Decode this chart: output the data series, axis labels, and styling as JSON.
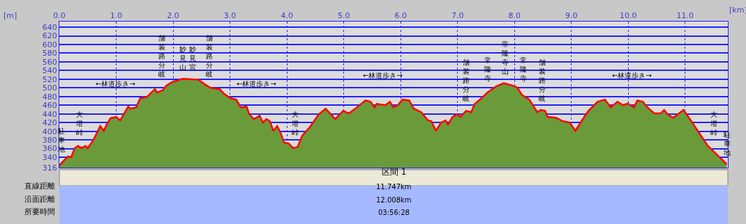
{
  "chart_data": {
    "type": "area",
    "xlabel": "[km]",
    "ylabel": "[m]",
    "x": [
      0,
      0.15,
      0.21,
      0.27,
      0.33,
      0.39,
      0.46,
      0.5,
      0.6,
      0.72,
      0.78,
      0.84,
      0.9,
      1.0,
      1.07,
      1.21,
      1.25,
      1.35,
      1.42,
      1.54,
      1.68,
      1.72,
      1.82,
      1.88,
      1.98,
      2.17,
      2.44,
      2.56,
      2.66,
      2.82,
      2.89,
      3.01,
      3.11,
      3.19,
      3.29,
      3.34,
      3.42,
      3.52,
      3.58,
      3.64,
      3.7,
      3.76,
      3.83,
      3.89,
      3.95,
      4.03,
      4.11,
      4.19,
      4.27,
      4.4,
      4.56,
      4.68,
      4.85,
      4.99,
      5.09,
      5.25,
      5.38,
      5.47,
      5.54,
      5.58,
      5.73,
      5.81,
      5.87,
      5.95,
      6.03,
      6.15,
      6.23,
      6.36,
      6.48,
      6.54,
      6.62,
      6.71,
      6.79,
      6.83,
      6.91,
      6.99,
      7.05,
      7.15,
      7.24,
      7.3,
      7.42,
      7.52,
      7.67,
      7.81,
      7.95,
      8.05,
      8.13,
      8.26,
      8.4,
      8.46,
      8.54,
      8.58,
      8.73,
      8.85,
      8.97,
      9.07,
      9.2,
      9.3,
      9.46,
      9.59,
      9.69,
      9.81,
      9.91,
      9.99,
      10.1,
      10.16,
      10.26,
      10.32,
      10.46,
      10.57,
      10.63,
      10.69,
      10.79,
      10.89,
      10.97,
      11.1,
      11.26,
      11.4,
      11.59,
      11.73
    ],
    "series": [
      {
        "color": "#6b9a3a",
        "values": [
          321,
          342,
          340,
          361,
          366,
          361,
          366,
          361,
          380,
          412,
          401,
          417,
          430,
          433,
          425,
          457,
          452,
          455,
          476,
          479,
          497,
          489,
          495,
          505,
          513,
          521,
          519,
          508,
          500,
          497,
          487,
          476,
          473,
          455,
          457,
          439,
          428,
          436,
          420,
          428,
          423,
          401,
          412,
          396,
          374,
          372,
          361,
          364,
          390,
          409,
          439,
          452,
          428,
          447,
          441,
          457,
          471,
          468,
          455,
          463,
          460,
          468,
          455,
          460,
          473,
          471,
          452,
          444,
          425,
          423,
          401,
          420,
          425,
          415,
          433,
          439,
          433,
          447,
          444,
          463,
          476,
          489,
          503,
          511,
          506,
          501,
          484,
          473,
          444,
          449,
          447,
          433,
          431,
          423,
          420,
          401,
          428,
          447,
          468,
          473,
          455,
          468,
          460,
          464,
          455,
          471,
          468,
          457,
          441,
          441,
          449,
          439,
          431,
          441,
          449,
          425,
          393,
          366,
          342,
          324
        ]
      },
      {
        "type": "line",
        "color": "#ff0000",
        "values": [
          321,
          342,
          340,
          361,
          366,
          361,
          366,
          361,
          380,
          412,
          401,
          417,
          430,
          433,
          425,
          457,
          452,
          455,
          476,
          479,
          497,
          489,
          495,
          505,
          513,
          521,
          519,
          508,
          500,
          497,
          487,
          476,
          473,
          455,
          457,
          439,
          428,
          436,
          420,
          428,
          423,
          401,
          412,
          396,
          374,
          372,
          361,
          364,
          390,
          409,
          439,
          452,
          428,
          447,
          441,
          457,
          471,
          468,
          455,
          463,
          460,
          468,
          455,
          460,
          473,
          471,
          452,
          444,
          425,
          423,
          401,
          420,
          425,
          415,
          433,
          439,
          433,
          447,
          444,
          463,
          476,
          489,
          503,
          511,
          506,
          501,
          484,
          473,
          444,
          449,
          447,
          433,
          431,
          423,
          420,
          401,
          428,
          447,
          468,
          473,
          455,
          468,
          460,
          464,
          455,
          471,
          468,
          457,
          441,
          441,
          449,
          439,
          431,
          441,
          449,
          425,
          393,
          366,
          342,
          324
        ]
      }
    ],
    "xlim": [
      0,
      11.75
    ],
    "ylim": [
      316,
      653
    ],
    "xticks": [
      {
        "value": 0,
        "label": "0.0"
      },
      {
        "value": 1,
        "label": "1.0"
      },
      {
        "value": 2,
        "label": "2.0"
      },
      {
        "value": 3,
        "label": "3.0"
      },
      {
        "value": 4,
        "label": "4.0"
      },
      {
        "value": 5,
        "label": "5.0"
      },
      {
        "value": 6,
        "label": "6.0"
      },
      {
        "value": 7,
        "label": "7.0"
      },
      {
        "value": 8,
        "label": "8.0"
      },
      {
        "value": 9,
        "label": "9.0"
      },
      {
        "value": 10,
        "label": "10.0"
      },
      {
        "value": 11,
        "label": "11.0"
      }
    ],
    "yticks": [
      316,
      340,
      360,
      380,
      400,
      420,
      440,
      460,
      480,
      500,
      520,
      540,
      560,
      580,
      600,
      620,
      640
    ],
    "grid": true,
    "annotations": [
      "駐車地",
      "大塔峠",
      "←林道歩き→",
      "舗装路分岐",
      "妙見山",
      "妙見宮",
      "舗装路分岐",
      "←林道歩き→",
      "大塔峠",
      "←林道歩き→",
      "舗装路分岐",
      "常隆寺",
      "常隆寺山",
      "常隆寺",
      "舗装路分岐",
      "←林道歩き→",
      "大塔峠",
      "駐車地",
      "区間 1",
      "直線距離",
      "11.747km",
      "沿面距離",
      "12.008km",
      "所要時間",
      "03:56:28"
    ]
  }
}
